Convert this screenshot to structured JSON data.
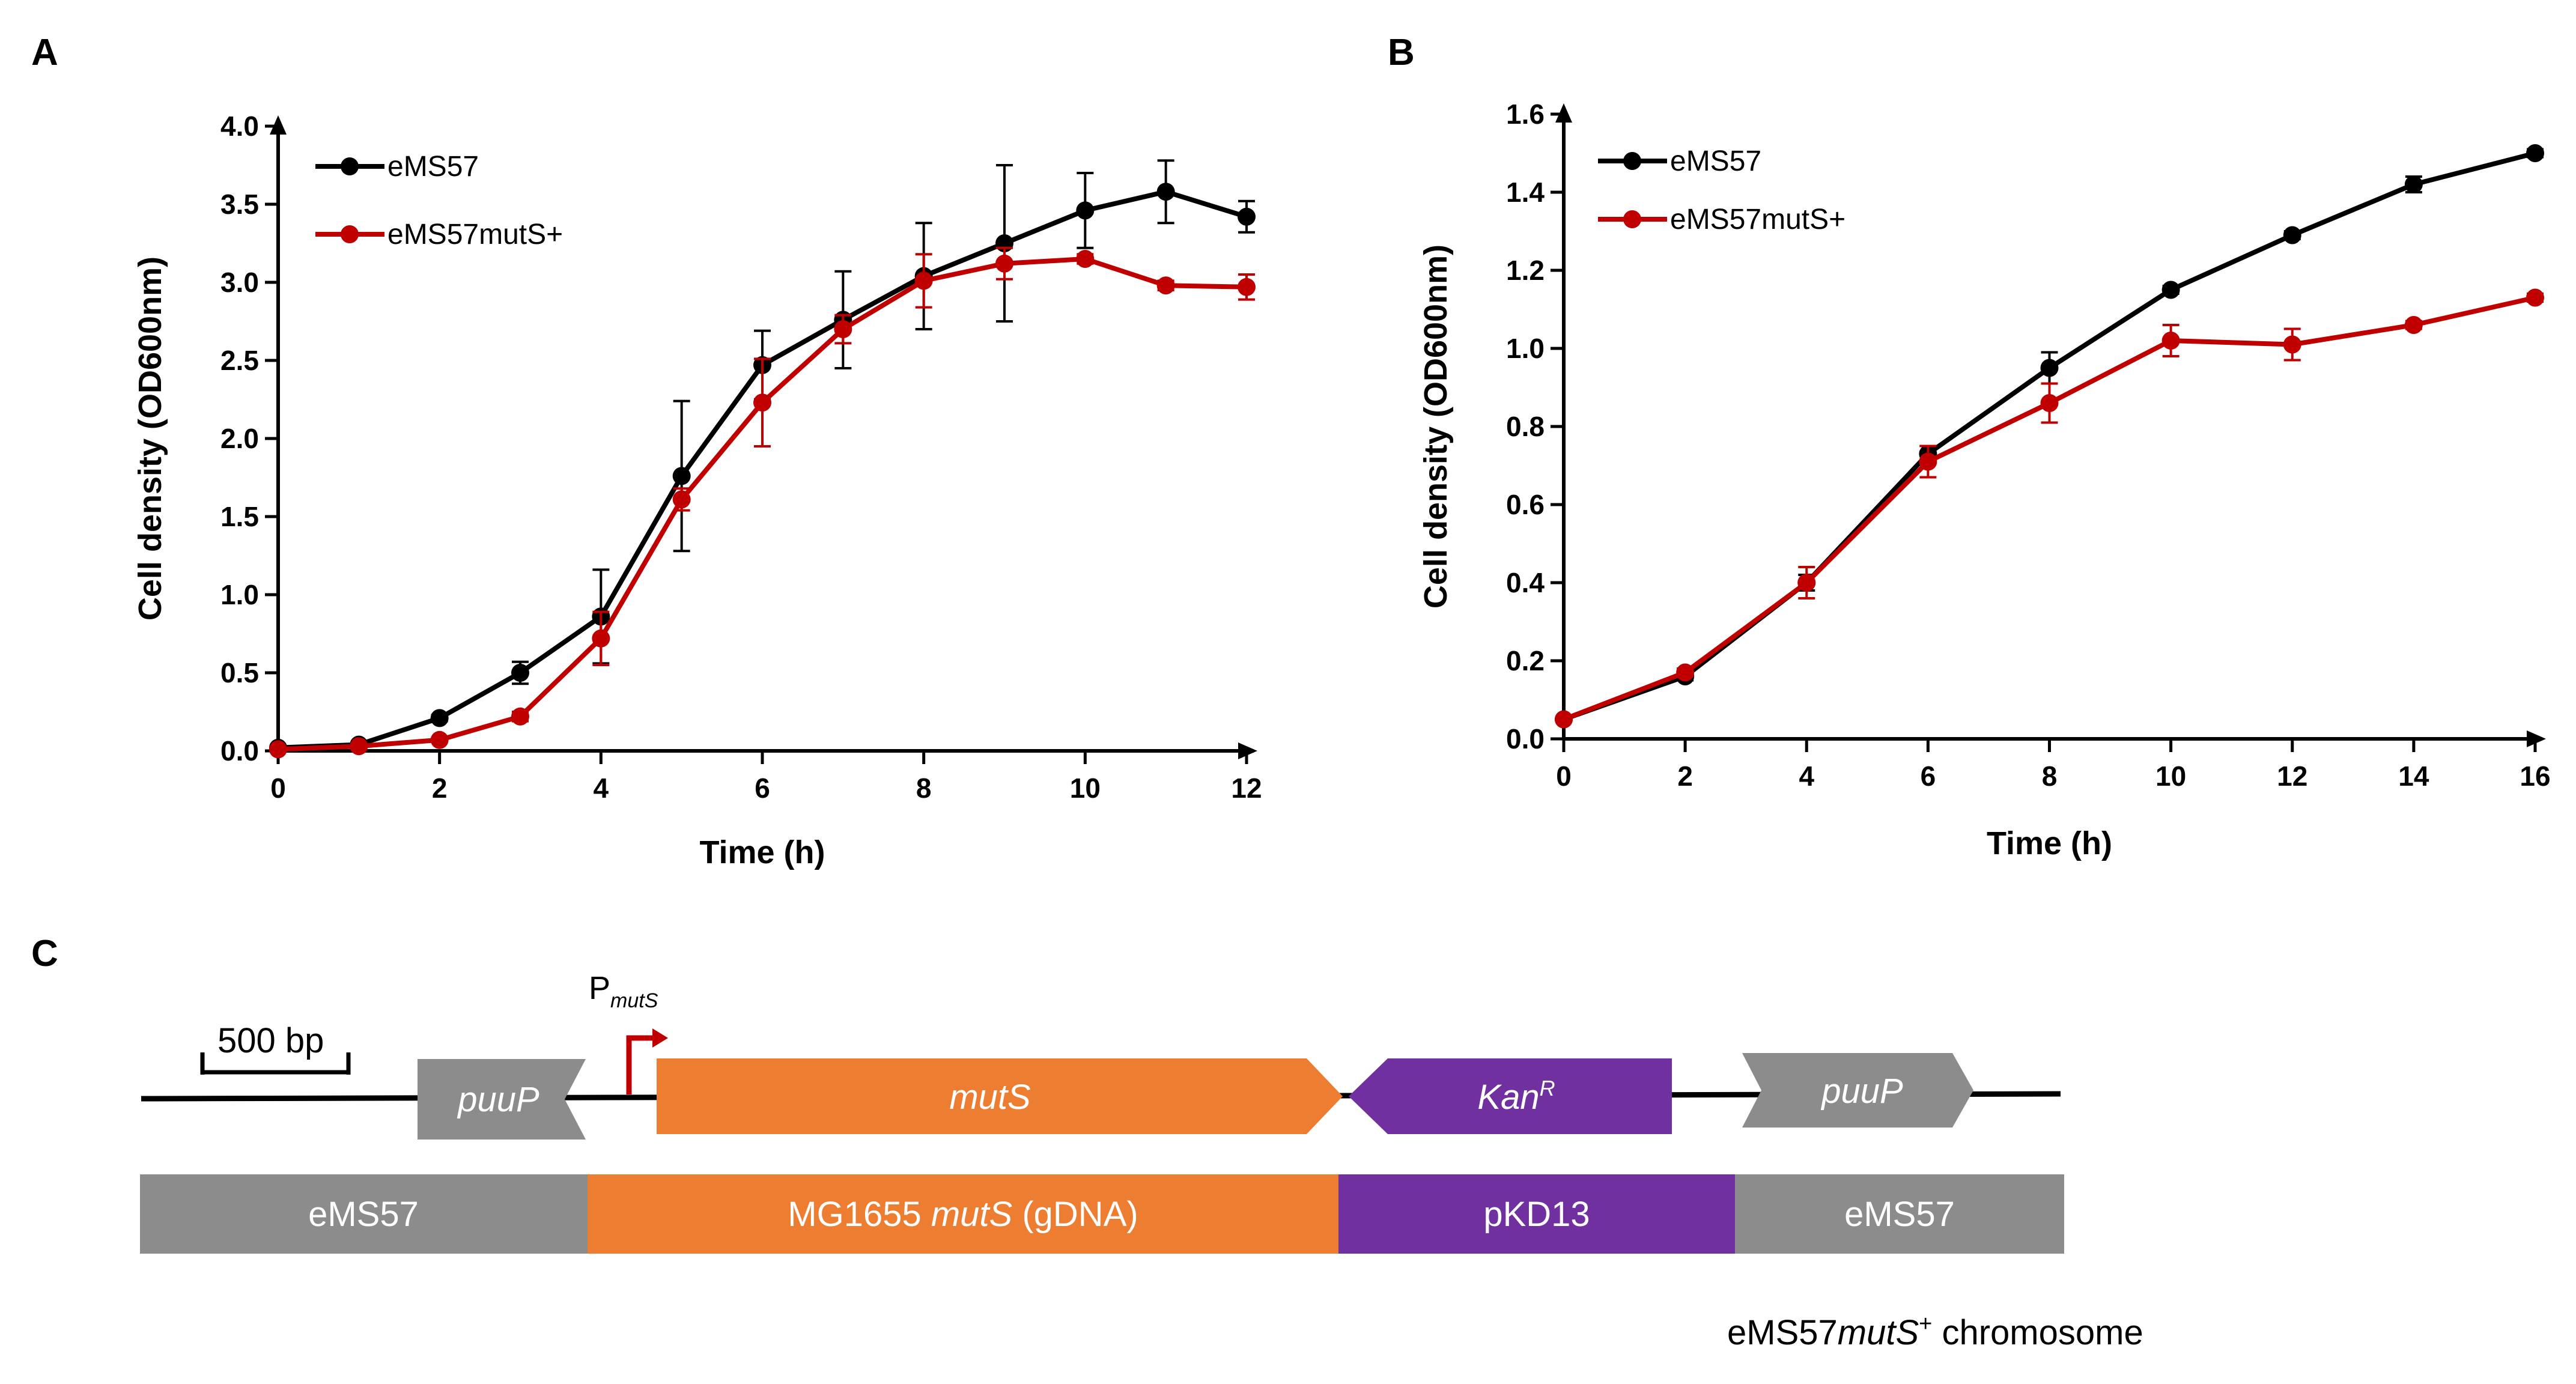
{
  "panels": {
    "A": "A",
    "B": "B",
    "C": "C"
  },
  "colors": {
    "black_series": "#000000",
    "red_series": "#c00000",
    "gray_segment": "#8c8c8c",
    "orange_segment": "#ed7d31",
    "purple_segment": "#7030a0",
    "promoter_arrow": "#c00000"
  },
  "chart_data": [
    {
      "type": "line",
      "panel": "A",
      "xlabel": "Time (h)",
      "ylabel": "Cell density (OD600nm)",
      "xlim": [
        0,
        12
      ],
      "ylim": [
        0,
        4
      ],
      "xticks": [
        "0",
        "2",
        "4",
        "6",
        "8",
        "10",
        "12"
      ],
      "yticks": [
        "0.0",
        "0.5",
        "1.0",
        "1.5",
        "2.0",
        "2.5",
        "3.0",
        "3.5",
        "4.0"
      ],
      "legend_position": "top-left",
      "grid": false,
      "series": [
        {
          "name": "eMS57",
          "color": "#000000",
          "x": [
            0,
            1,
            2,
            3,
            4,
            5,
            6,
            7,
            8,
            9,
            10,
            11,
            12
          ],
          "y": [
            0.02,
            0.04,
            0.21,
            0.5,
            0.86,
            1.76,
            2.47,
            2.76,
            3.04,
            3.25,
            3.46,
            3.58,
            3.42
          ],
          "err": [
            0.01,
            0.01,
            0.02,
            0.07,
            0.3,
            0.48,
            0.22,
            0.31,
            0.34,
            0.5,
            0.24,
            0.2,
            0.1
          ]
        },
        {
          "name": "eMS57mutS+",
          "color": "#c00000",
          "x": [
            0,
            1,
            2,
            3,
            4,
            5,
            6,
            7,
            8,
            9,
            10,
            11,
            12
          ],
          "y": [
            0.01,
            0.03,
            0.07,
            0.22,
            0.72,
            1.61,
            2.23,
            2.7,
            3.01,
            3.12,
            3.15,
            2.98,
            2.97
          ],
          "err": [
            0.01,
            0.01,
            0.01,
            0.03,
            0.17,
            0.07,
            0.28,
            0.09,
            0.17,
            0.1,
            0.03,
            0.03,
            0.08
          ]
        }
      ]
    },
    {
      "type": "line",
      "panel": "B",
      "xlabel": "Time (h)",
      "ylabel": "Cell density (OD600nm)",
      "xlim": [
        0,
        16
      ],
      "ylim": [
        0,
        1.6
      ],
      "xticks": [
        "0",
        "2",
        "4",
        "6",
        "8",
        "10",
        "12",
        "14",
        "16"
      ],
      "yticks": [
        "0.0",
        "0.2",
        "0.4",
        "0.6",
        "0.8",
        "1.0",
        "1.2",
        "1.4",
        "1.6"
      ],
      "legend_position": "top-left",
      "grid": false,
      "series": [
        {
          "name": "eMS57",
          "color": "#000000",
          "x": [
            0,
            2,
            4,
            6,
            8,
            10,
            12,
            14,
            16
          ],
          "y": [
            0.05,
            0.16,
            0.4,
            0.73,
            0.95,
            1.15,
            1.29,
            1.42,
            1.5
          ],
          "err": [
            0.005,
            0.01,
            0.02,
            0.02,
            0.04,
            0.01,
            0.01,
            0.02,
            0.01
          ]
        },
        {
          "name": "eMS57mutS+",
          "color": "#c00000",
          "x": [
            0,
            2,
            4,
            6,
            8,
            10,
            12,
            14,
            16
          ],
          "y": [
            0.05,
            0.17,
            0.4,
            0.71,
            0.86,
            1.02,
            1.01,
            1.06,
            1.13
          ],
          "err": [
            0.005,
            0.01,
            0.04,
            0.04,
            0.05,
            0.04,
            0.04,
            0.01,
            0.01
          ]
        }
      ]
    }
  ],
  "map": {
    "scale_label": "500 bp",
    "promoter_label_main": "P",
    "promoter_label_sub": "mutS",
    "genes": {
      "puuP_left": "puuP",
      "mutS": "mutS",
      "kanR_main": "Kan",
      "kanR_sup": "R",
      "puuP_right": "puuP"
    },
    "source_bar": {
      "seg1": "eMS57",
      "seg2_pre": "MG1655 ",
      "seg2_it": "mutS",
      "seg2_post": " (gDNA)",
      "seg3": "pKD13",
      "seg4": "eMS57"
    },
    "caption": {
      "pre": "eMS57",
      "it": "mutS",
      "sup": "+",
      "post": " chromosome"
    }
  }
}
